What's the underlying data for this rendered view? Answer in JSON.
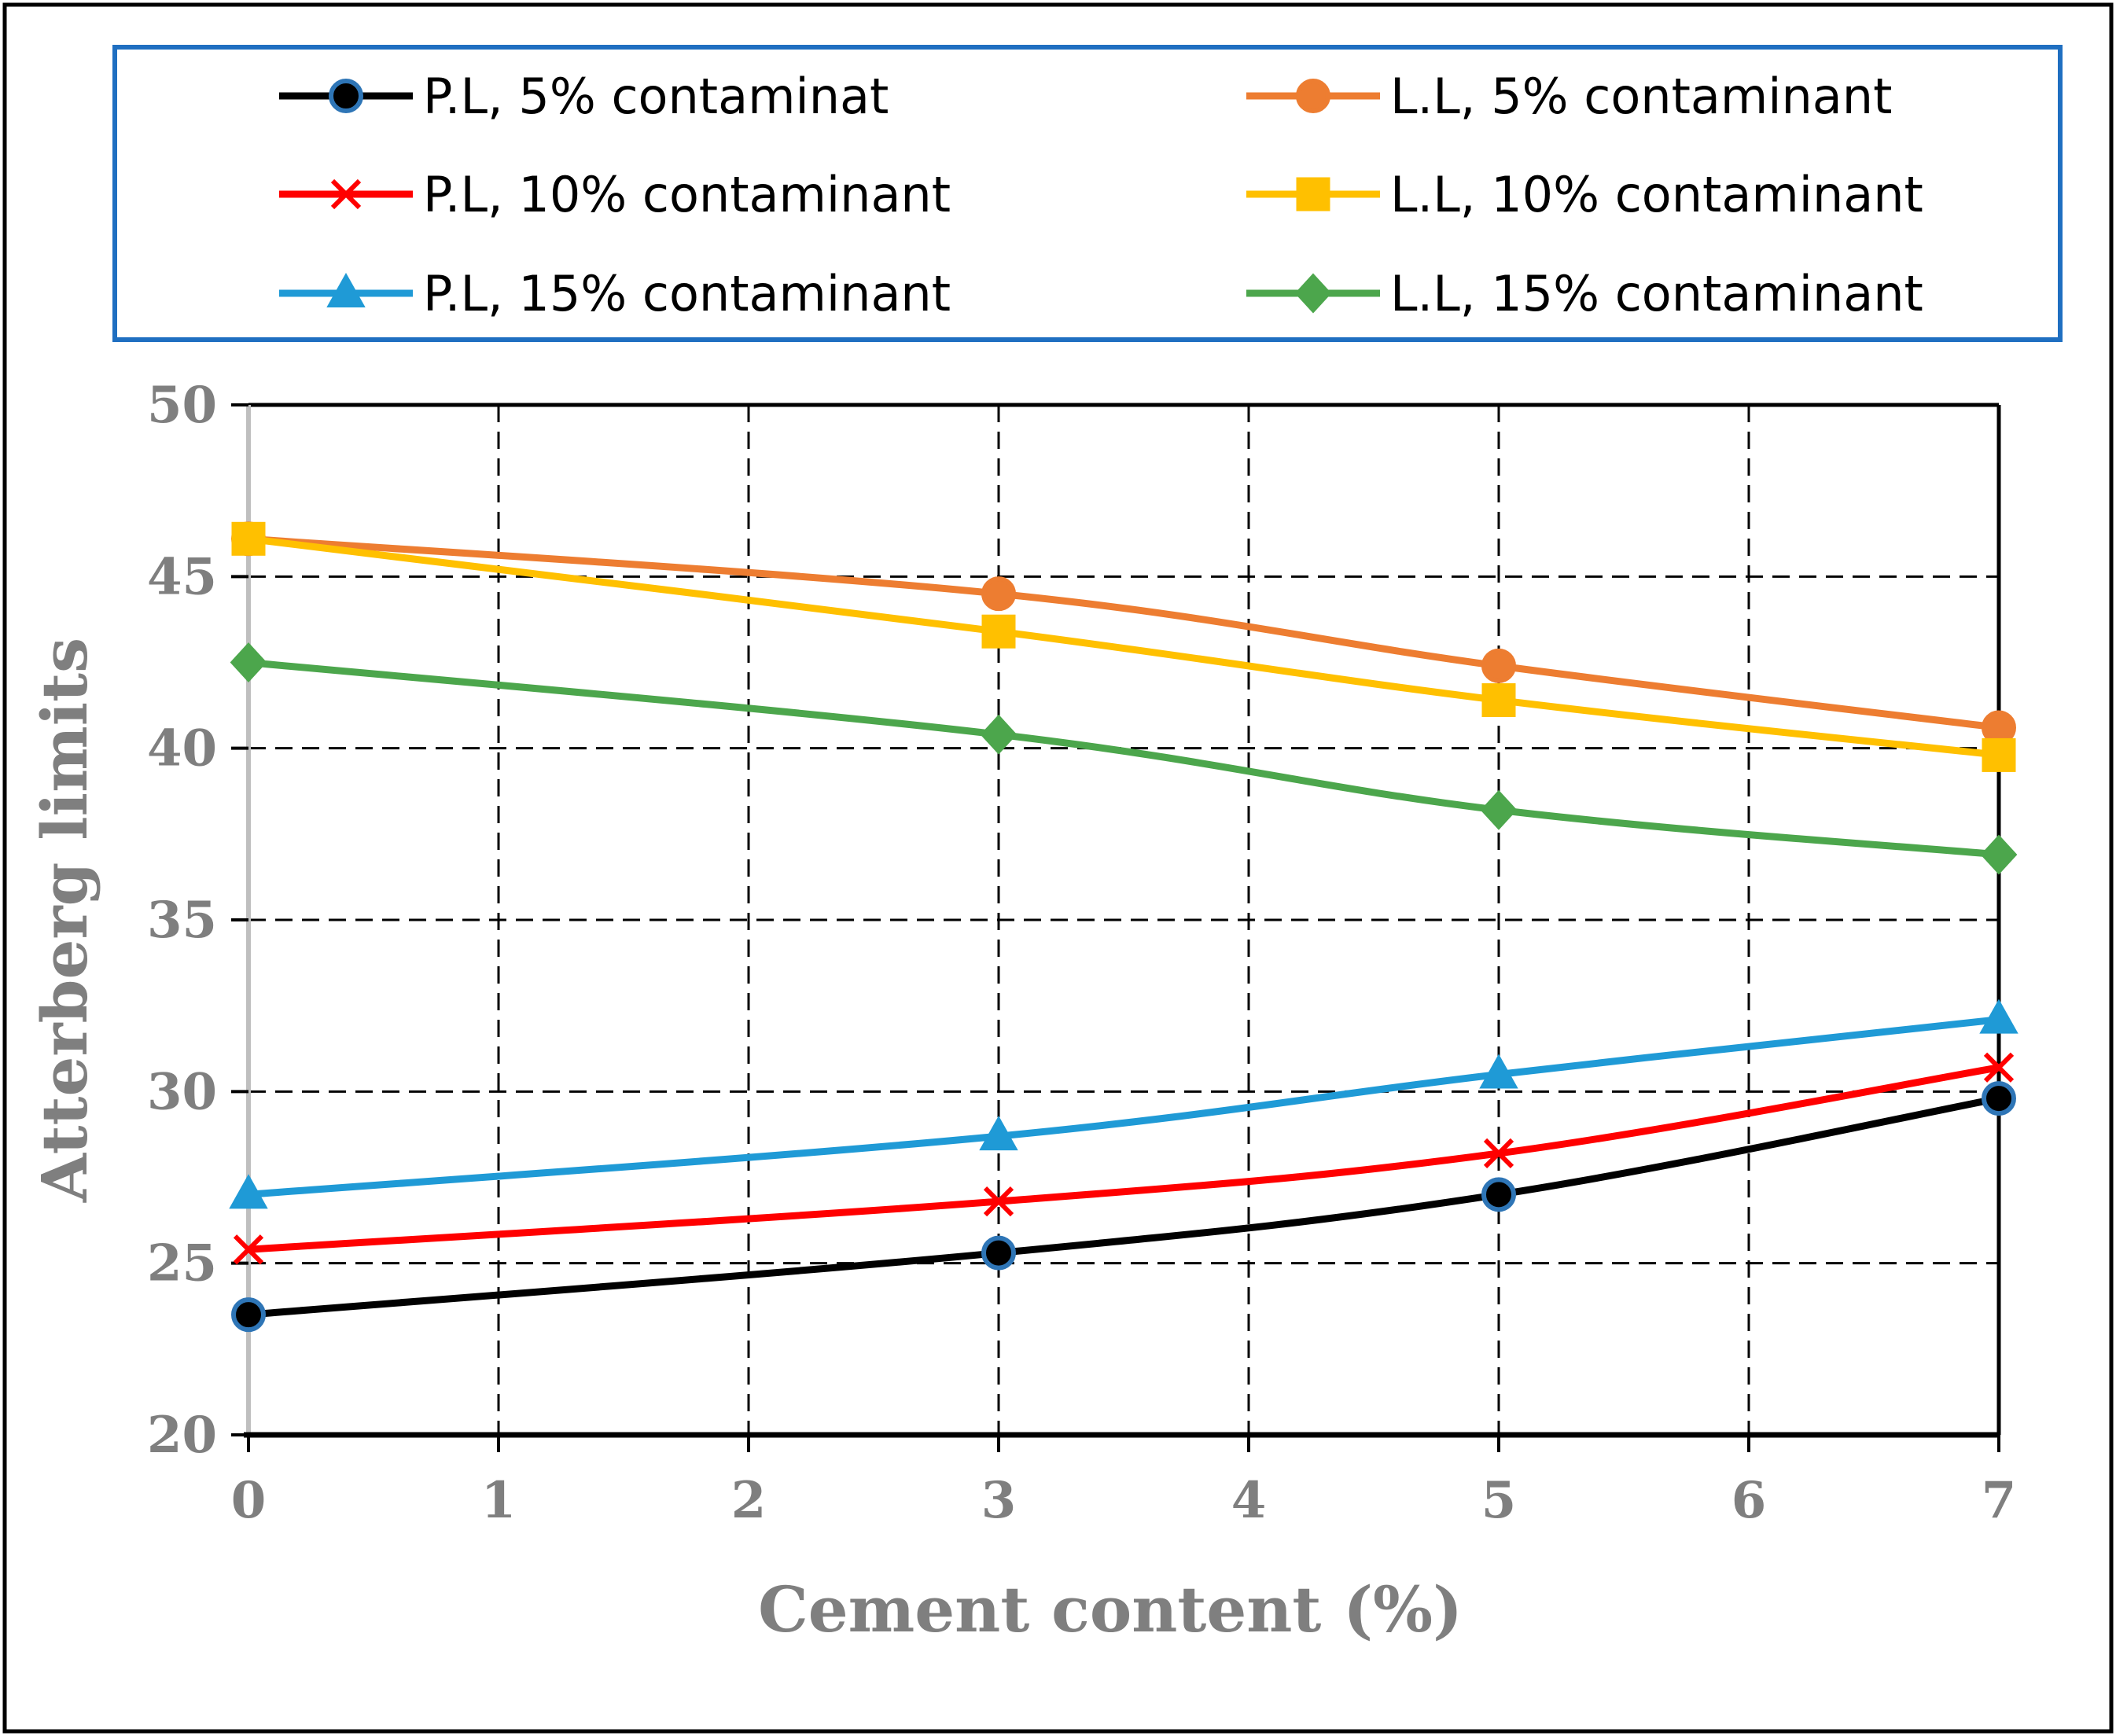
{
  "chart_data": {
    "type": "line",
    "title": "",
    "xlabel": "Cement content (%)",
    "ylabel": "Atterberg limits",
    "xlim": [
      0,
      7
    ],
    "ylim": [
      20,
      50
    ],
    "x_ticks": [
      "0",
      "1",
      "2",
      "3",
      "4",
      "5",
      "6",
      "7"
    ],
    "y_ticks": [
      "20",
      "25",
      "30",
      "35",
      "40",
      "45",
      "50"
    ],
    "grid": true,
    "legend_position": "top",
    "x": [
      0,
      3,
      5,
      7
    ],
    "series": [
      {
        "name": "P.L, 5% contaminat",
        "values": [
          23.5,
          25.3,
          27.0,
          29.8
        ],
        "color": "#000000",
        "marker": "circle",
        "marker_fill": "#000000",
        "marker_edge": "#2e75b6"
      },
      {
        "name": "L.L, 5% contaminant",
        "values": [
          46.1,
          44.5,
          42.4,
          40.6
        ],
        "color": "#ed7d31",
        "marker": "circle",
        "marker_fill": "#ed7d31",
        "marker_edge": "#ed7d31"
      },
      {
        "name": "P.L, 10% contaminant",
        "values": [
          25.4,
          26.8,
          28.2,
          30.7
        ],
        "color": "#ff0000",
        "marker": "x",
        "marker_fill": "#ff0000",
        "marker_edge": "#ff0000"
      },
      {
        "name": "L.L, 10% contaminant",
        "values": [
          46.1,
          43.4,
          41.4,
          39.8
        ],
        "color": "#ffc000",
        "marker": "square",
        "marker_fill": "#ffc000",
        "marker_edge": "#ffc000"
      },
      {
        "name": "P.L, 15% contaminant",
        "values": [
          27.0,
          28.7,
          30.5,
          32.1
        ],
        "color": "#1f9ad6",
        "marker": "triangle",
        "marker_fill": "#1f9ad6",
        "marker_edge": "#1f9ad6"
      },
      {
        "name": "L.L, 15% contaminant",
        "values": [
          42.5,
          40.4,
          38.2,
          36.9
        ],
        "color": "#4ca64c",
        "marker": "diamond",
        "marker_fill": "#4ca64c",
        "marker_edge": "#4ca64c"
      }
    ],
    "legend_box_color": "#1f6fc1"
  }
}
